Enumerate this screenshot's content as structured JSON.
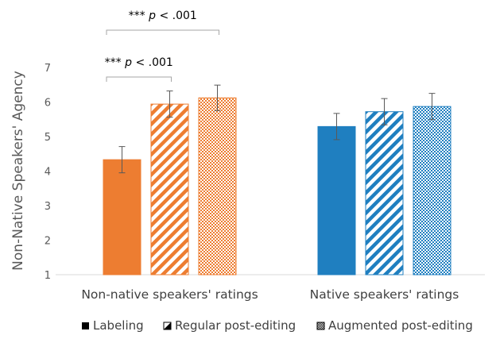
{
  "chart_data": {
    "type": "bar",
    "categories": [
      "Non-native speakers' ratings",
      "Native speakers' ratings"
    ],
    "series": [
      {
        "name": "Labeling",
        "pattern": "solid",
        "values": [
          4.33,
          5.29
        ],
        "errors": [
          0.38,
          0.38
        ]
      },
      {
        "name": "Regular post-editing",
        "pattern": "diagonal-stripes",
        "values": [
          5.94,
          5.72
        ],
        "errors": [
          0.38,
          0.38
        ]
      },
      {
        "name": "Augmented post-editing",
        "pattern": "checker",
        "values": [
          6.12,
          5.87
        ],
        "errors": [
          0.37,
          0.38
        ]
      }
    ],
    "colors": [
      "#ED7D31",
      "#1F7FC0"
    ],
    "xlabel": "",
    "ylabel": "Non-Native Speakers' Agency",
    "ylim": [
      1,
      7
    ],
    "yticks": [
      "1",
      "2",
      "3",
      "4",
      "5",
      "6",
      "7"
    ],
    "grid": false,
    "legend_position": "bottom",
    "annotations": [
      {
        "label_prefix": "*** ",
        "label_p": "p",
        "label_value": " < .001",
        "category": 0,
        "from_series": 0,
        "to_series": 1,
        "level": "lower"
      },
      {
        "label_prefix": "*** ",
        "label_p": "p",
        "label_value": " < .001",
        "category": 0,
        "from_series": 0,
        "to_series": 2,
        "level": "upper"
      }
    ]
  }
}
